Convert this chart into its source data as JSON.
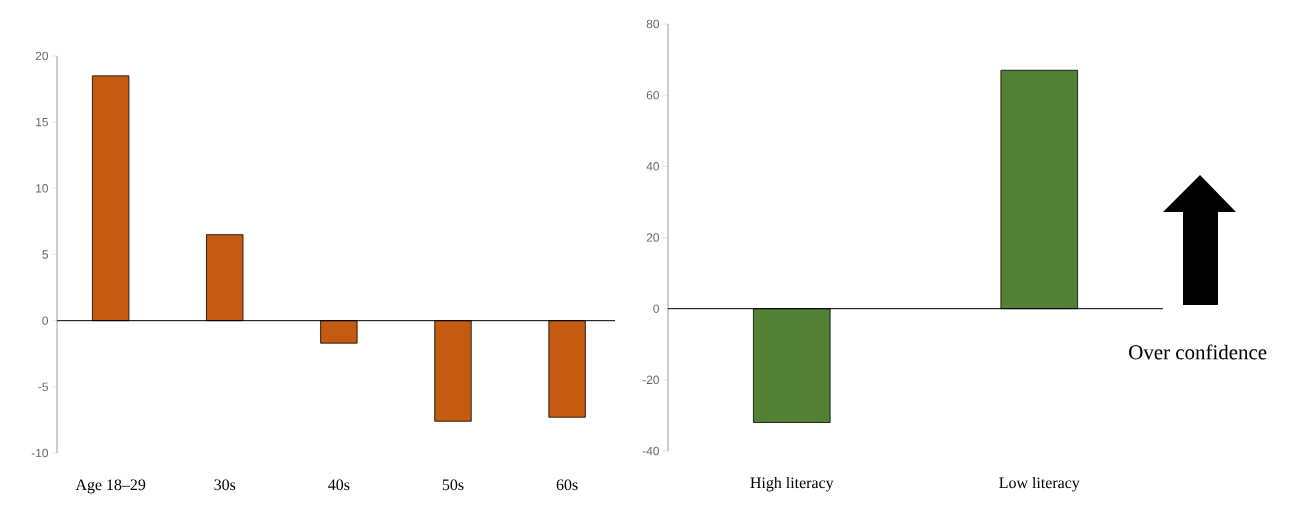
{
  "chart_data": [
    {
      "type": "bar",
      "categories": [
        "Age 18–29",
        "30s",
        "40s",
        "50s",
        "60s"
      ],
      "values": [
        18.5,
        6.5,
        -1.7,
        -7.6,
        -7.3
      ],
      "color": "#c55a11",
      "ylim": [
        -10,
        20
      ],
      "yticks": [
        -10,
        -5,
        0,
        5,
        10,
        15,
        20
      ]
    },
    {
      "type": "bar",
      "categories": [
        "High literacy",
        "Low literacy"
      ],
      "values": [
        -32,
        67
      ],
      "color": "#538135",
      "ylim": [
        -40,
        80
      ],
      "yticks": [
        -40,
        -20,
        0,
        20,
        40,
        60,
        80
      ],
      "annotations": [
        "Over confidence"
      ]
    }
  ]
}
